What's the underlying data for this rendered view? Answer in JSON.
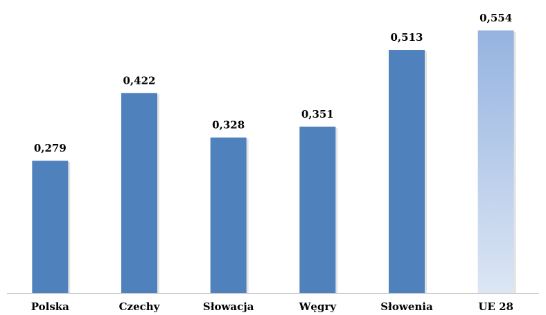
{
  "chart_data": {
    "type": "bar",
    "categories": [
      "Polska",
      "Czechy",
      "Słowacja",
      "Węgry",
      "Słowenia",
      "UE 28"
    ],
    "values": [
      0.279,
      0.422,
      0.328,
      0.351,
      0.513,
      0.554
    ],
    "value_labels": [
      "0,279",
      "0,422",
      "0,328",
      "0,351",
      "0,513",
      "0,554"
    ],
    "title": "",
    "xlabel": "",
    "ylabel": "",
    "ylim": [
      0,
      0.6
    ],
    "grid": false,
    "legend": "none",
    "colors": {
      "bar": "#4f81bd",
      "highlight_top": "#95b3e0",
      "highlight_bottom": "#dce6f4",
      "bar_shadow": "#d0d0d0",
      "axis": "#a6a6a6"
    },
    "highlighted_category": "UE 28"
  }
}
